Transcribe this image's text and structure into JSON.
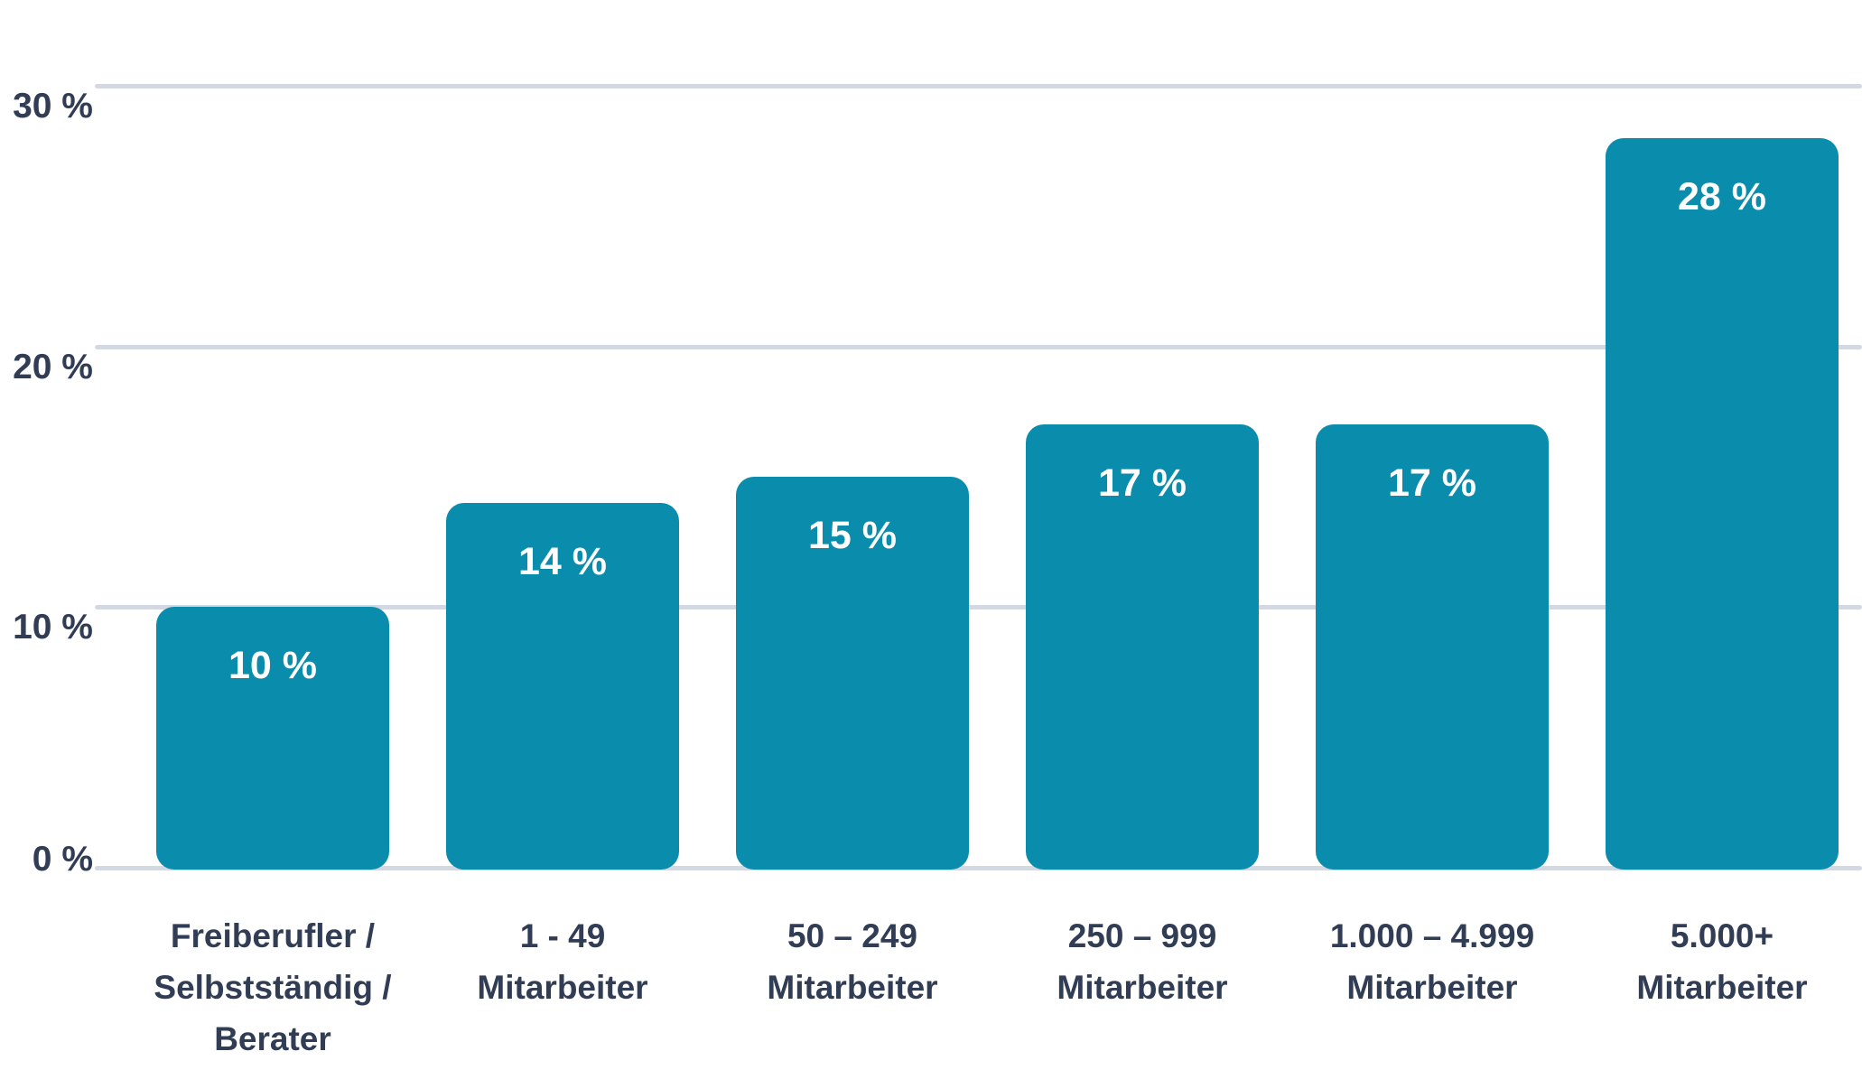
{
  "chart_data": {
    "type": "bar",
    "title": "",
    "categories": [
      "Freiberufler /\nSelbstständig /\nBerater",
      "1 - 49\nMitarbeiter",
      "50 – 249\nMitarbeiter",
      "250 – 999\nMitarbeiter",
      "1.000 – 4.999\nMitarbeiter",
      "5.000+\nMitarbeiter"
    ],
    "values": [
      10,
      14,
      15,
      17,
      17,
      28
    ],
    "bar_labels": [
      "10 %",
      "14 %",
      "15 %",
      "17 %",
      "17 %",
      "28 %"
    ],
    "xlabel": "",
    "ylabel": "",
    "ylim": [
      0,
      30
    ],
    "y_ticks": [
      {
        "value": 30,
        "label": "30 %"
      },
      {
        "value": 20,
        "label": "20 %"
      },
      {
        "value": 10,
        "label": "10 %"
      },
      {
        "value": 0,
        "label": "0 %"
      }
    ],
    "grid": "horizontal",
    "legend": "none",
    "colors": {
      "bar": "#0A8DAC",
      "bar_label_text": "#FFFFFF",
      "axis_text": "#313C55",
      "gridline": "#D4D8E3",
      "background": "#FFFFFF"
    }
  }
}
